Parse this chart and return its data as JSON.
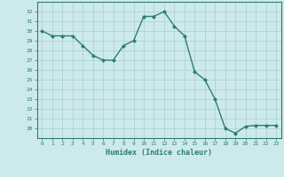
{
  "x": [
    0,
    1,
    2,
    3,
    4,
    5,
    6,
    7,
    8,
    9,
    10,
    11,
    12,
    13,
    14,
    15,
    16,
    17,
    18,
    19,
    20,
    21,
    22,
    23
  ],
  "y": [
    30.0,
    29.5,
    29.5,
    29.5,
    28.5,
    27.5,
    27.0,
    27.0,
    28.5,
    29.0,
    31.5,
    31.5,
    32.0,
    30.5,
    29.5,
    25.8,
    25.0,
    23.0,
    20.0,
    19.5,
    20.2,
    20.3,
    20.3,
    20.3
  ],
  "line_color": "#2e7d6e",
  "marker": "D",
  "marker_size": 2,
  "bg_color": "#cdeaea",
  "grid_color": "#aacece",
  "xlabel": "Humidex (Indice chaleur)",
  "ylim": [
    19,
    33
  ],
  "yticks": [
    20,
    21,
    22,
    23,
    24,
    25,
    26,
    27,
    28,
    29,
    30,
    31,
    32
  ],
  "xlim": [
    -0.5,
    23.5
  ],
  "xticks": [
    0,
    1,
    2,
    3,
    4,
    5,
    6,
    7,
    8,
    9,
    10,
    11,
    12,
    13,
    14,
    15,
    16,
    17,
    18,
    19,
    20,
    21,
    22,
    23
  ],
  "tick_color": "#2e7d6e",
  "label_color": "#2e7d6e",
  "spine_color": "#2e7d6e"
}
